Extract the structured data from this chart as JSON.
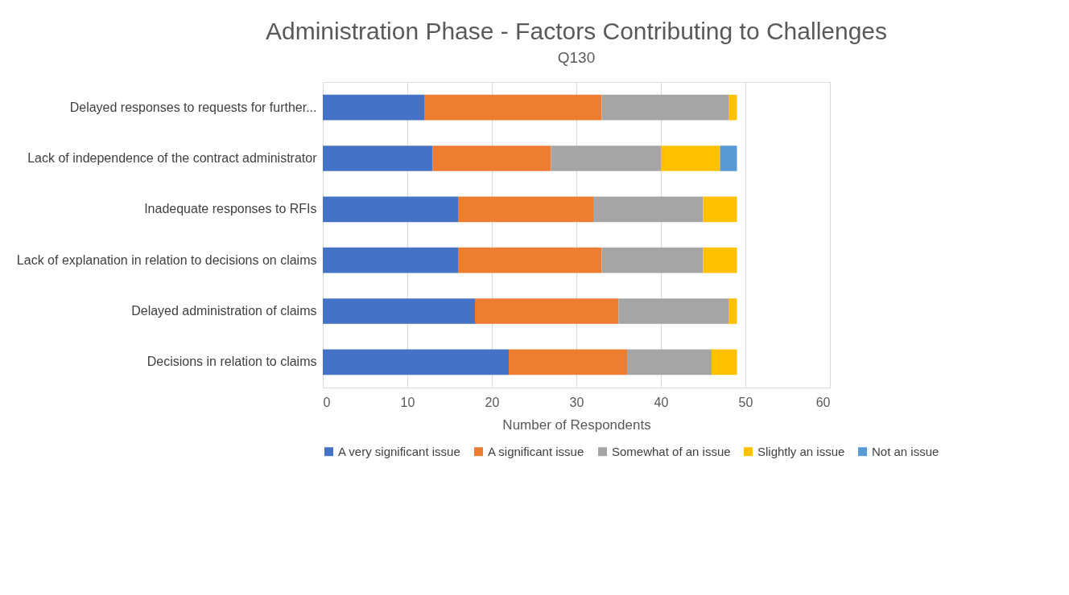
{
  "chart_data": {
    "type": "bar",
    "orientation": "horizontal",
    "stacked": true,
    "title": "Administration Phase - Factors Contributing to Challenges",
    "subtitle": "Q130",
    "xlabel": "Number of Respondents",
    "categories": [
      "Delayed responses to requests for further...",
      "Lack of independence of the contract administrator",
      "Inadequate responses to RFIs",
      "Lack of explanation in relation to decisions on claims",
      "Delayed administration of claims",
      "Decisions in relation to claims"
    ],
    "series": [
      {
        "name": "A very significant issue",
        "color": "#4472c4",
        "values": [
          12,
          13,
          16,
          16,
          18,
          22
        ]
      },
      {
        "name": "A significant issue",
        "color": "#ed7d31",
        "values": [
          21,
          14,
          16,
          17,
          17,
          14
        ]
      },
      {
        "name": "Somewhat of an issue",
        "color": "#a5a5a5",
        "values": [
          15,
          13,
          13,
          12,
          13,
          10
        ]
      },
      {
        "name": "Slightly an issue",
        "color": "#ffc000",
        "values": [
          1,
          7,
          4,
          4,
          1,
          3
        ]
      },
      {
        "name": "Not an issue",
        "color": "#5b9bd5",
        "values": [
          0,
          2,
          0,
          0,
          0,
          0
        ]
      }
    ],
    "xlim": [
      0,
      60
    ],
    "xticks": [
      0,
      10,
      20,
      30,
      40,
      50,
      60
    ],
    "grid": "x",
    "legend": "bottom"
  }
}
